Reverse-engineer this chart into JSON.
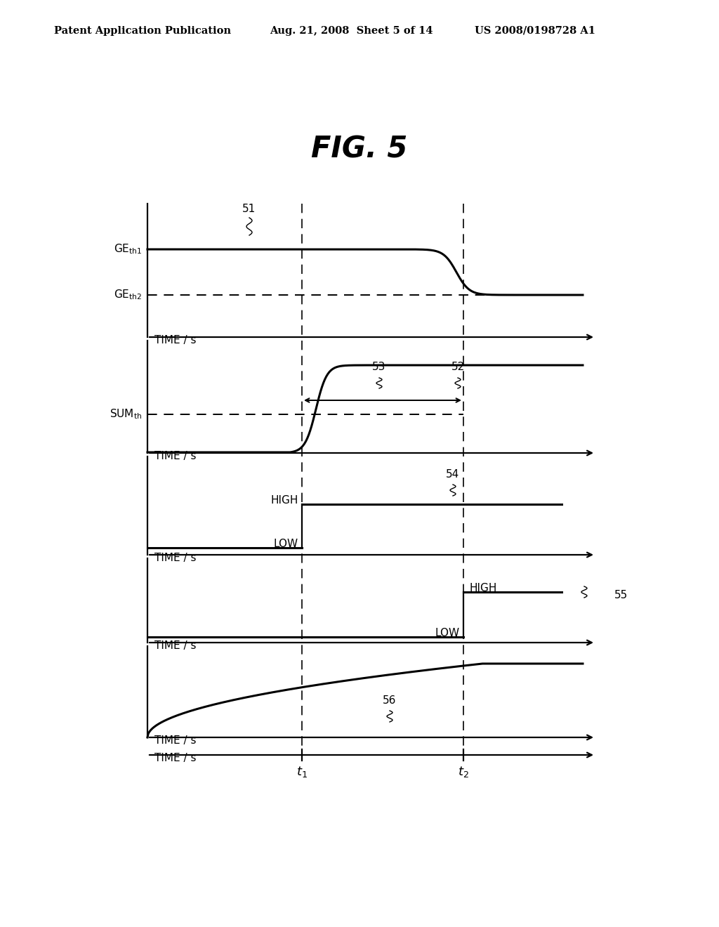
{
  "title": "FIG. 5",
  "header_left": "Patent Application Publication",
  "header_mid": "Aug. 21, 2008  Sheet 5 of 14",
  "header_right": "US 2008/0198728 A1",
  "background_color": "#ffffff",
  "annotations": {
    "51": "51",
    "52": "52",
    "53": "53",
    "54": "54",
    "55": "55",
    "56": "56"
  }
}
